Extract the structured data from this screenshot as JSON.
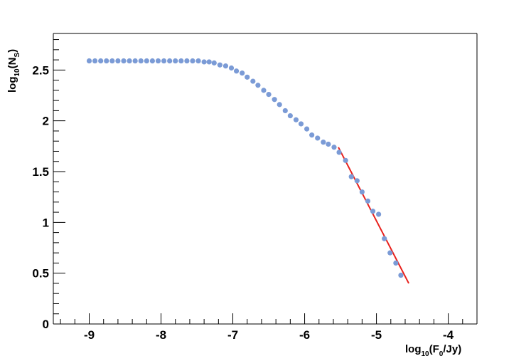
{
  "chart_data": {
    "type": "scatter",
    "title": "",
    "xlabel": {
      "base": "log",
      "sub": "10",
      "mid": "(F",
      "sub2": "0",
      "end": "/Jy)"
    },
    "ylabel": {
      "base": "log",
      "sub": "10",
      "mid": "(N",
      "sub2": "S",
      "end": ")"
    },
    "xlim": [
      -9.5,
      -3.6
    ],
    "ylim": [
      0,
      2.86
    ],
    "xticks": [
      -9,
      -8,
      -7,
      -6,
      -5,
      -4
    ],
    "xtick_labels": [
      "-9",
      "-8",
      "-7",
      "-6",
      "-5",
      "-4"
    ],
    "yticks": [
      0,
      0.5,
      1,
      1.5,
      2,
      2.5
    ],
    "ytick_labels": [
      "0",
      "0.5",
      "1",
      "1.5",
      "2",
      "2.5"
    ],
    "grid": false,
    "series": [
      {
        "kind": "points",
        "color": "#7b9bd6",
        "points": [
          [
            -9.0,
            2.59
          ],
          [
            -8.92,
            2.59
          ],
          [
            -8.84,
            2.59
          ],
          [
            -8.76,
            2.59
          ],
          [
            -8.68,
            2.59
          ],
          [
            -8.6,
            2.59
          ],
          [
            -8.52,
            2.59
          ],
          [
            -8.44,
            2.59
          ],
          [
            -8.36,
            2.59
          ],
          [
            -8.28,
            2.59
          ],
          [
            -8.2,
            2.59
          ],
          [
            -8.12,
            2.59
          ],
          [
            -8.04,
            2.59
          ],
          [
            -7.96,
            2.59
          ],
          [
            -7.88,
            2.59
          ],
          [
            -7.8,
            2.59
          ],
          [
            -7.72,
            2.59
          ],
          [
            -7.64,
            2.59
          ],
          [
            -7.56,
            2.59
          ],
          [
            -7.48,
            2.59
          ],
          [
            -7.4,
            2.58
          ],
          [
            -7.33,
            2.58
          ],
          [
            -7.26,
            2.57
          ],
          [
            -7.18,
            2.55
          ],
          [
            -7.1,
            2.54
          ],
          [
            -7.02,
            2.52
          ],
          [
            -6.95,
            2.49
          ],
          [
            -6.87,
            2.47
          ],
          [
            -6.8,
            2.43
          ],
          [
            -6.72,
            2.39
          ],
          [
            -6.65,
            2.35
          ],
          [
            -6.57,
            2.3
          ],
          [
            -6.5,
            2.26
          ],
          [
            -6.42,
            2.21
          ],
          [
            -6.35,
            2.16
          ],
          [
            -6.27,
            2.1
          ],
          [
            -6.2,
            2.05
          ],
          [
            -6.12,
            2.01
          ],
          [
            -6.05,
            1.97
          ],
          [
            -5.97,
            1.92
          ],
          [
            -5.9,
            1.86
          ],
          [
            -5.82,
            1.83
          ],
          [
            -5.74,
            1.79
          ],
          [
            -5.67,
            1.77
          ],
          [
            -5.59,
            1.74
          ],
          [
            -5.52,
            1.69
          ],
          [
            -5.43,
            1.61
          ],
          [
            -5.35,
            1.45
          ],
          [
            -5.27,
            1.41
          ],
          [
            -5.2,
            1.3
          ],
          [
            -5.12,
            1.21
          ],
          [
            -5.05,
            1.11
          ],
          [
            -4.97,
            1.08
          ],
          [
            -4.89,
            0.84
          ],
          [
            -4.81,
            0.7
          ],
          [
            -4.73,
            0.6
          ],
          [
            -4.66,
            0.48
          ]
        ]
      },
      {
        "kind": "line",
        "color": "#e8201c",
        "points": [
          [
            -5.53,
            1.74
          ],
          [
            -4.55,
            0.4
          ]
        ]
      }
    ]
  }
}
